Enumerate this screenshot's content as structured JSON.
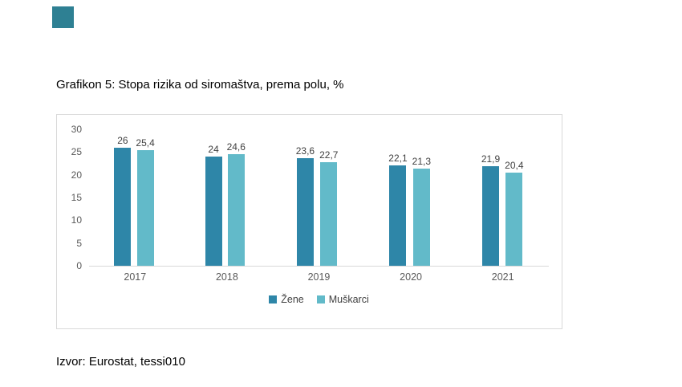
{
  "title": "Grafikon 5: Stopa rizika od siromaštva, prema polu, %",
  "source": "Izvor: Eurostat, tessi010",
  "accent_square_color": "#2e8093",
  "chart_data": {
    "type": "bar",
    "title": "Grafikon 5: Stopa rizika od siromaštva, prema polu, %",
    "categories": [
      "2017",
      "2018",
      "2019",
      "2020",
      "2021"
    ],
    "series": [
      {
        "name": "Žene",
        "color": "#2e86a8",
        "values": [
          26,
          24,
          23.6,
          22.1,
          21.9
        ],
        "labels": [
          "26",
          "24",
          "23,6",
          "22,1",
          "21,9"
        ]
      },
      {
        "name": "Muškarci",
        "color": "#62bac9",
        "values": [
          25.4,
          24.6,
          22.7,
          21.3,
          20.4
        ],
        "labels": [
          "25,4",
          "24,6",
          "22,7",
          "21,3",
          "20,4"
        ]
      }
    ],
    "xlabel": "",
    "ylabel": "",
    "ylim": [
      0,
      30
    ],
    "yticks": [
      0,
      5,
      10,
      15,
      20,
      25,
      30
    ],
    "grid": false,
    "legend_position": "bottom"
  }
}
